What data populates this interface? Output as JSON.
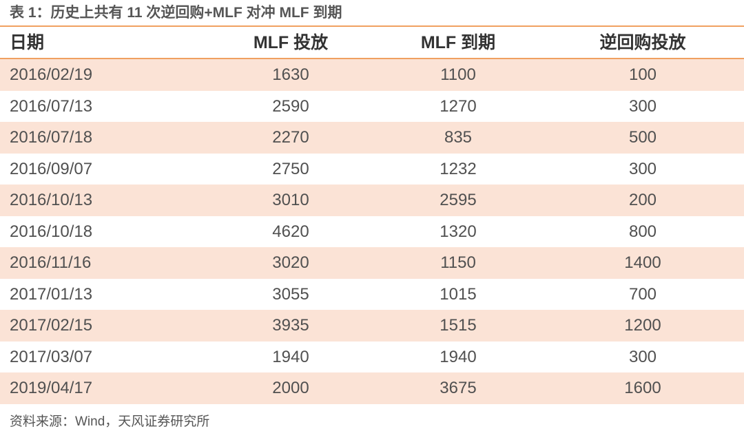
{
  "header": {
    "title": "表 1：历史上共有 11 次逆回购+MLF 对冲 MLF 到期"
  },
  "table": {
    "columns": [
      "日期",
      "MLF 投放",
      "MLF 到期",
      "逆回购投放"
    ],
    "rows": [
      [
        "2016/02/19",
        1630,
        1100,
        100
      ],
      [
        "2016/07/13",
        2590,
        1270,
        300
      ],
      [
        "2016/07/18",
        2270,
        835,
        500
      ],
      [
        "2016/09/07",
        2750,
        1232,
        300
      ],
      [
        "2016/10/13",
        3010,
        2595,
        200
      ],
      [
        "2016/10/18",
        4620,
        1320,
        800
      ],
      [
        "2016/11/16",
        3020,
        1150,
        1400
      ],
      [
        "2017/01/13",
        3055,
        1015,
        700
      ],
      [
        "2017/02/15",
        3935,
        1515,
        1200
      ],
      [
        "2017/03/07",
        1940,
        1940,
        300
      ],
      [
        "2019/04/17",
        2000,
        3675,
        1600
      ]
    ]
  },
  "footer": {
    "source": "资料来源：Wind，天风证券研究所"
  }
}
